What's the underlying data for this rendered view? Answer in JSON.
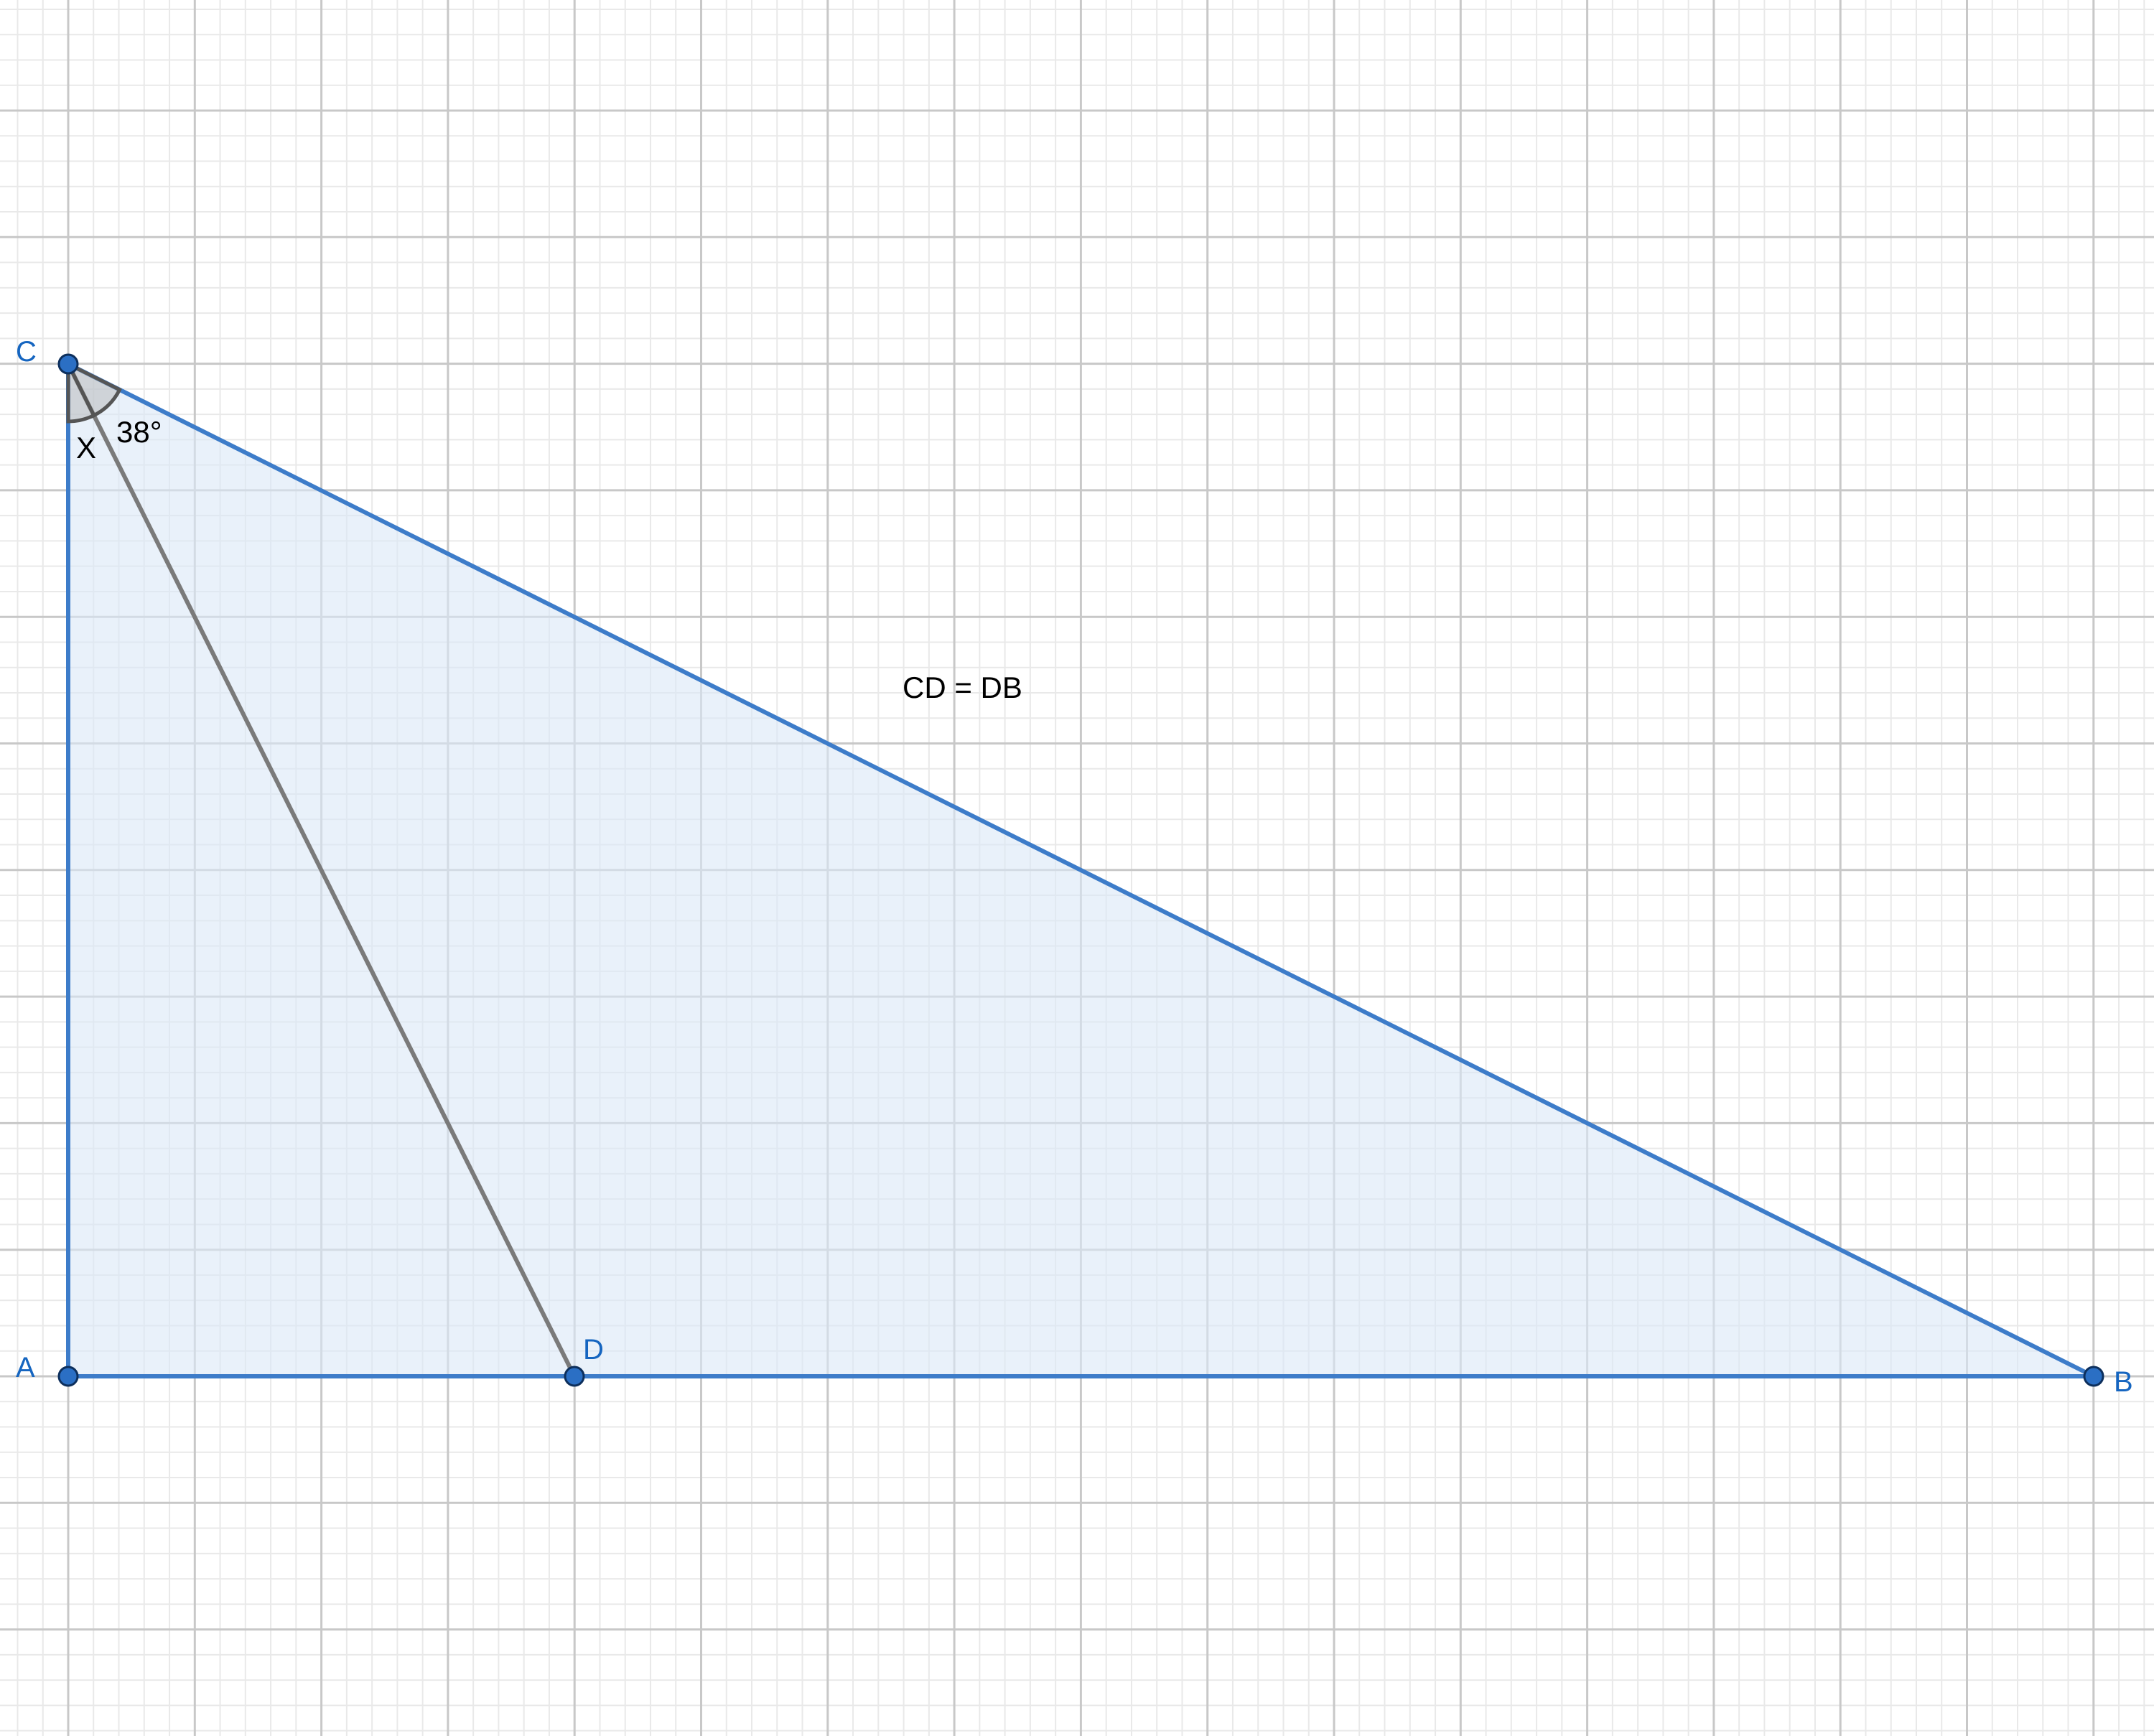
{
  "diagram": {
    "points": {
      "A": {
        "label": "A"
      },
      "B": {
        "label": "B"
      },
      "C": {
        "label": "C"
      },
      "D": {
        "label": "D"
      }
    },
    "angle_labels": {
      "unknown": "X",
      "given": "38°"
    },
    "annotation": "CD = DB",
    "colors": {
      "triangle_stroke": "#3d7cc9",
      "triangle_fill": "#dbe7f7",
      "segment_cd": "#7a7a7a",
      "point_fill": "#2b6fc4",
      "point_label": "#1565c0",
      "grid_major": "#c8c8c8",
      "grid_minor": "#e9e9e9"
    }
  }
}
